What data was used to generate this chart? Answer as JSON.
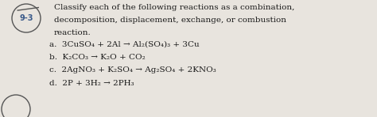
{
  "background_color": "#e8e4de",
  "text_color": "#1a1a1a",
  "circle_color": "#555555",
  "section_label": "9-3",
  "section_label_color": "#3a5a8a",
  "title_lines": [
    "Classify each of the following reactions as a combination,",
    "decomposition, displacement, exchange, or combustion",
    "reaction."
  ],
  "reactions": [
    "a.  3CuSO₄ + 2Al → Al₂(SO₄)₃ + 3Cu",
    "b.  K₂CO₃ → K₂O + CO₂",
    "c.  2AgNO₃ + K₂SO₄ → Ag₂SO₄ + 2KNO₃",
    "d.  2P + 3H₂ → 2PH₃"
  ],
  "figsize": [
    4.74,
    1.48
  ],
  "dpi": 100
}
